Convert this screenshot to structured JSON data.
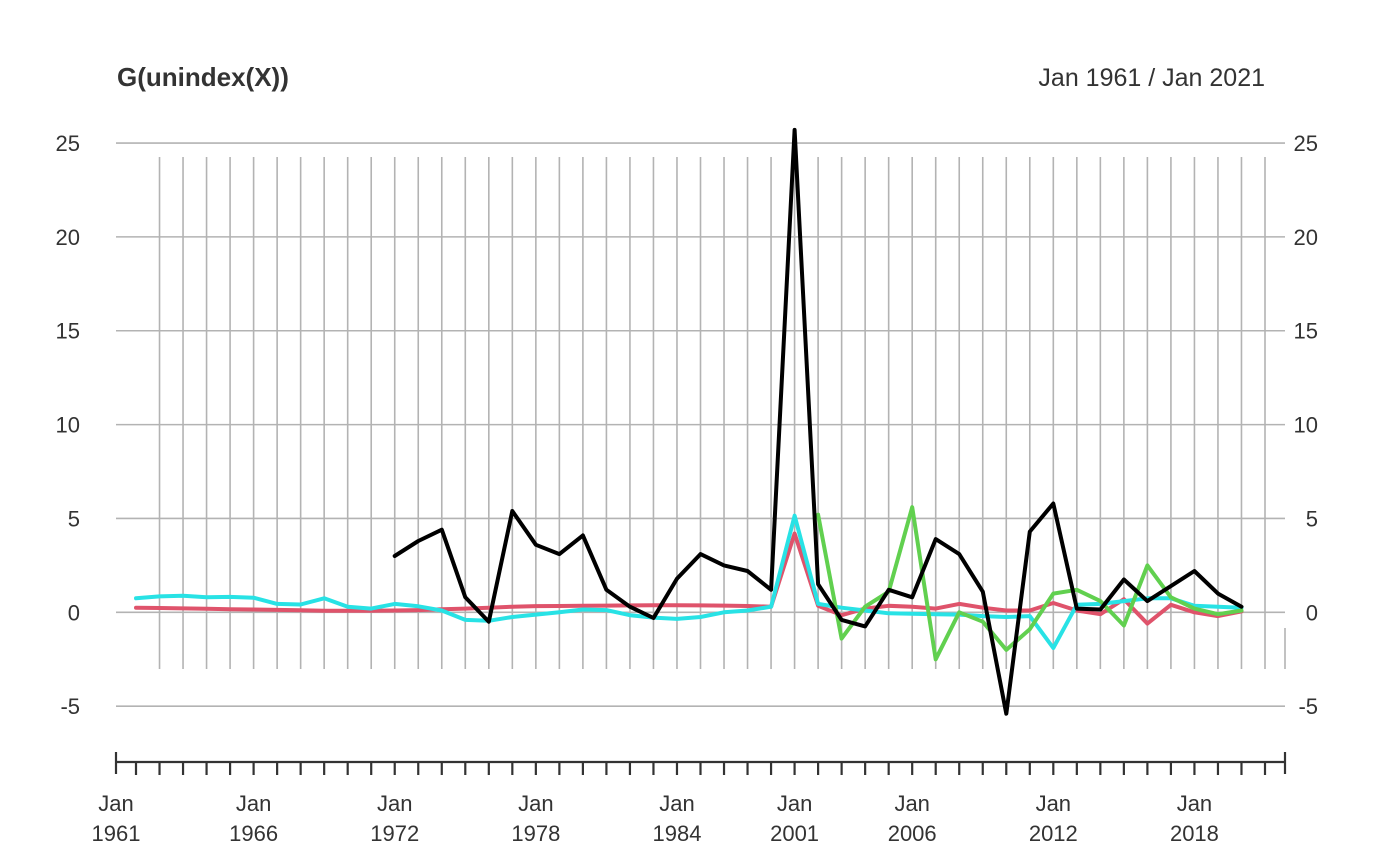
{
  "chart_data": {
    "type": "line",
    "title": "G(unindex(X))",
    "date_range": "Jan 1961 / Jan 2021",
    "ylim": [
      -6.8,
      25.8
    ],
    "y_ticks": [
      25,
      20,
      15,
      10,
      5,
      0,
      -5
    ],
    "y_tick_labels": [
      "25",
      "20",
      "15",
      "10",
      "5",
      "0",
      "-5"
    ],
    "x_axis_labels": [
      {
        "month": "Jan",
        "year": "1961"
      },
      {
        "month": "Jan",
        "year": "1966"
      },
      {
        "month": "Jan",
        "year": "1972"
      },
      {
        "month": "Jan",
        "year": "1978"
      },
      {
        "month": "Jan",
        "year": "1984"
      },
      {
        "month": "Jan",
        "year": "2001"
      },
      {
        "month": "Jan",
        "year": "2006"
      },
      {
        "month": "Jan",
        "year": "2012"
      },
      {
        "month": "Jan",
        "year": "2018"
      }
    ],
    "x": [
      1961,
      1962,
      1963,
      1964,
      1965,
      1966,
      1967,
      1968,
      1969,
      1970,
      1971,
      1972,
      1973,
      1974,
      1975,
      1976,
      1977,
      1978,
      1979,
      1980,
      1981,
      1982,
      1983,
      1984,
      1985,
      1986,
      1987,
      1988,
      2001,
      2002,
      2003,
      2004,
      2005,
      2006,
      2007,
      2008,
      2009,
      2010,
      2011,
      2012,
      2013,
      2014,
      2015,
      2016,
      2017,
      2018,
      2019,
      2020,
      2021
    ],
    "series": [
      {
        "name": "red",
        "color": "#df536b",
        "values": [
          0.25,
          0.23,
          0.21,
          0.19,
          0.17,
          0.15,
          0.13,
          0.11,
          0.09,
          0.08,
          0.08,
          0.1,
          0.12,
          0.16,
          0.2,
          0.25,
          0.3,
          0.33,
          0.34,
          0.35,
          0.36,
          0.37,
          0.38,
          0.38,
          0.37,
          0.36,
          0.34,
          0.3,
          4.2,
          0.35,
          -0.15,
          0.2,
          0.35,
          0.3,
          0.2,
          0.45,
          0.25,
          0.1,
          0.1,
          0.5,
          0.1,
          -0.1,
          0.7,
          -0.6,
          0.4,
          0.0,
          -0.2,
          0.05,
          null
        ]
      },
      {
        "name": "cyan",
        "color": "#28e2e5",
        "values": [
          0.75,
          0.85,
          0.88,
          0.8,
          0.82,
          0.78,
          0.45,
          0.42,
          0.75,
          0.3,
          0.2,
          0.45,
          0.32,
          0.1,
          -0.4,
          -0.45,
          -0.25,
          -0.12,
          0.0,
          0.15,
          0.12,
          -0.15,
          -0.28,
          -0.35,
          -0.25,
          0.0,
          0.1,
          0.3,
          5.15,
          0.45,
          0.25,
          0.1,
          -0.05,
          -0.08,
          -0.1,
          -0.12,
          -0.2,
          -0.25,
          -0.2,
          -1.9,
          0.4,
          0.45,
          0.6,
          0.75,
          0.75,
          0.35,
          0.3,
          0.25,
          null
        ]
      },
      {
        "name": "green",
        "color": "#61d04f",
        "values": [
          null,
          null,
          null,
          null,
          null,
          null,
          null,
          null,
          null,
          null,
          null,
          null,
          null,
          null,
          null,
          null,
          null,
          null,
          null,
          null,
          null,
          null,
          null,
          null,
          null,
          null,
          null,
          null,
          null,
          5.2,
          -1.4,
          0.3,
          1.1,
          5.6,
          -2.5,
          0.0,
          -0.5,
          -2.0,
          -0.9,
          1.0,
          1.2,
          0.6,
          -0.7,
          2.5,
          0.8,
          0.2,
          -0.1,
          0.1,
          null
        ]
      },
      {
        "name": "black",
        "color": "#000000",
        "values": [
          null,
          null,
          null,
          null,
          null,
          null,
          null,
          null,
          null,
          null,
          null,
          3.0,
          3.8,
          4.4,
          0.8,
          -0.5,
          5.4,
          3.6,
          3.1,
          4.1,
          1.2,
          0.3,
          -0.3,
          1.8,
          3.1,
          2.5,
          2.2,
          1.2,
          25.7,
          1.5,
          -0.4,
          -0.75,
          1.2,
          0.8,
          3.9,
          3.1,
          1.1,
          -5.4,
          4.3,
          5.8,
          0.2,
          0.15,
          1.75,
          0.6,
          1.4,
          2.2,
          1.0,
          0.3,
          null
        ]
      }
    ],
    "grid": true
  }
}
